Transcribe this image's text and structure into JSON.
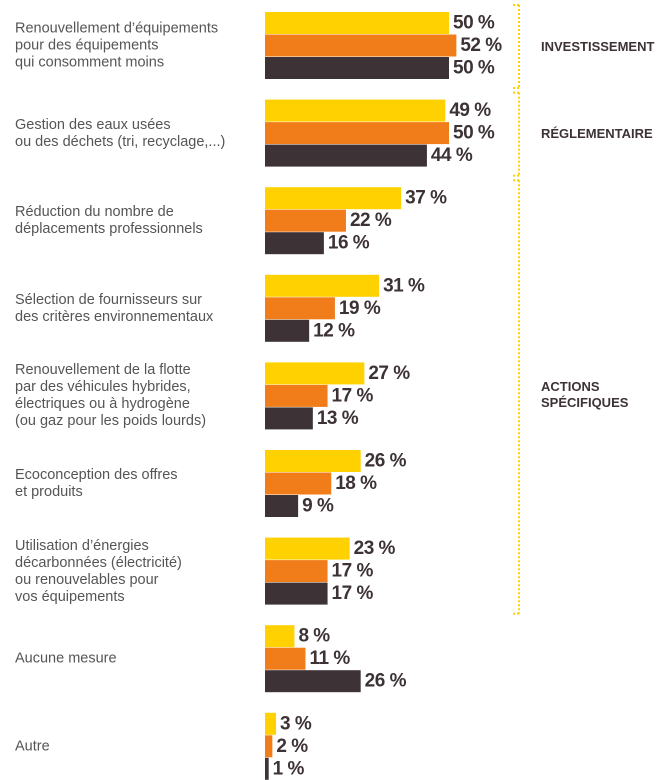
{
  "chart_data": {
    "type": "bar",
    "orientation": "horizontal",
    "categories": [
      "Renouvellement d’équipements\npour des équipements\nqui consomment moins",
      "Gestion des eaux usées\nou des déchets (tri, recyclage,...)",
      "Réduction du nombre de\ndéplacements professionnels",
      "Sélection de fournisseurs sur\ndes critères environnementaux",
      "Renouvellement de la flotte\npar des véhicules hybrides,\nélectriques ou à hydrogène\n(ou gaz pour les poids lourds)",
      "Ecoconception des offres\net produits",
      "Utilisation d’énergies\ndécarbonnées (électricité)\nou renouvelables pour\nvos équipements",
      "Aucune mesure",
      "Autre"
    ],
    "series": [
      {
        "color": "#FFD100",
        "values": [
          50,
          49,
          37,
          31,
          27,
          26,
          23,
          8,
          3
        ],
        "value_labels": [
          "50 %",
          "49 %",
          "37 %",
          "31 %",
          "27 %",
          "26 %",
          "23 %",
          "8 %",
          "3 %"
        ]
      },
      {
        "color": "#F07D1A",
        "values": [
          52,
          50,
          22,
          19,
          17,
          18,
          17,
          11,
          2
        ],
        "value_labels": [
          "52 %",
          "50 %",
          "22 %",
          "19 %",
          "17 %",
          "18 %",
          "17 %",
          "11 %",
          "2 %"
        ]
      },
      {
        "color": "#3D3235",
        "values": [
          50,
          44,
          16,
          12,
          13,
          9,
          17,
          26,
          1
        ],
        "value_labels": [
          "50 %",
          "44 %",
          "16 %",
          "12 %",
          "13 %",
          "9 %",
          "17 %",
          "26 %",
          "1 %"
        ]
      }
    ],
    "groups": [
      "INVESTISSEMENT",
      "RÉGLEMENTAIRE",
      "ACTIONS\nSPÉCIFIQUES"
    ],
    "group_color": "#FFD100"
  }
}
